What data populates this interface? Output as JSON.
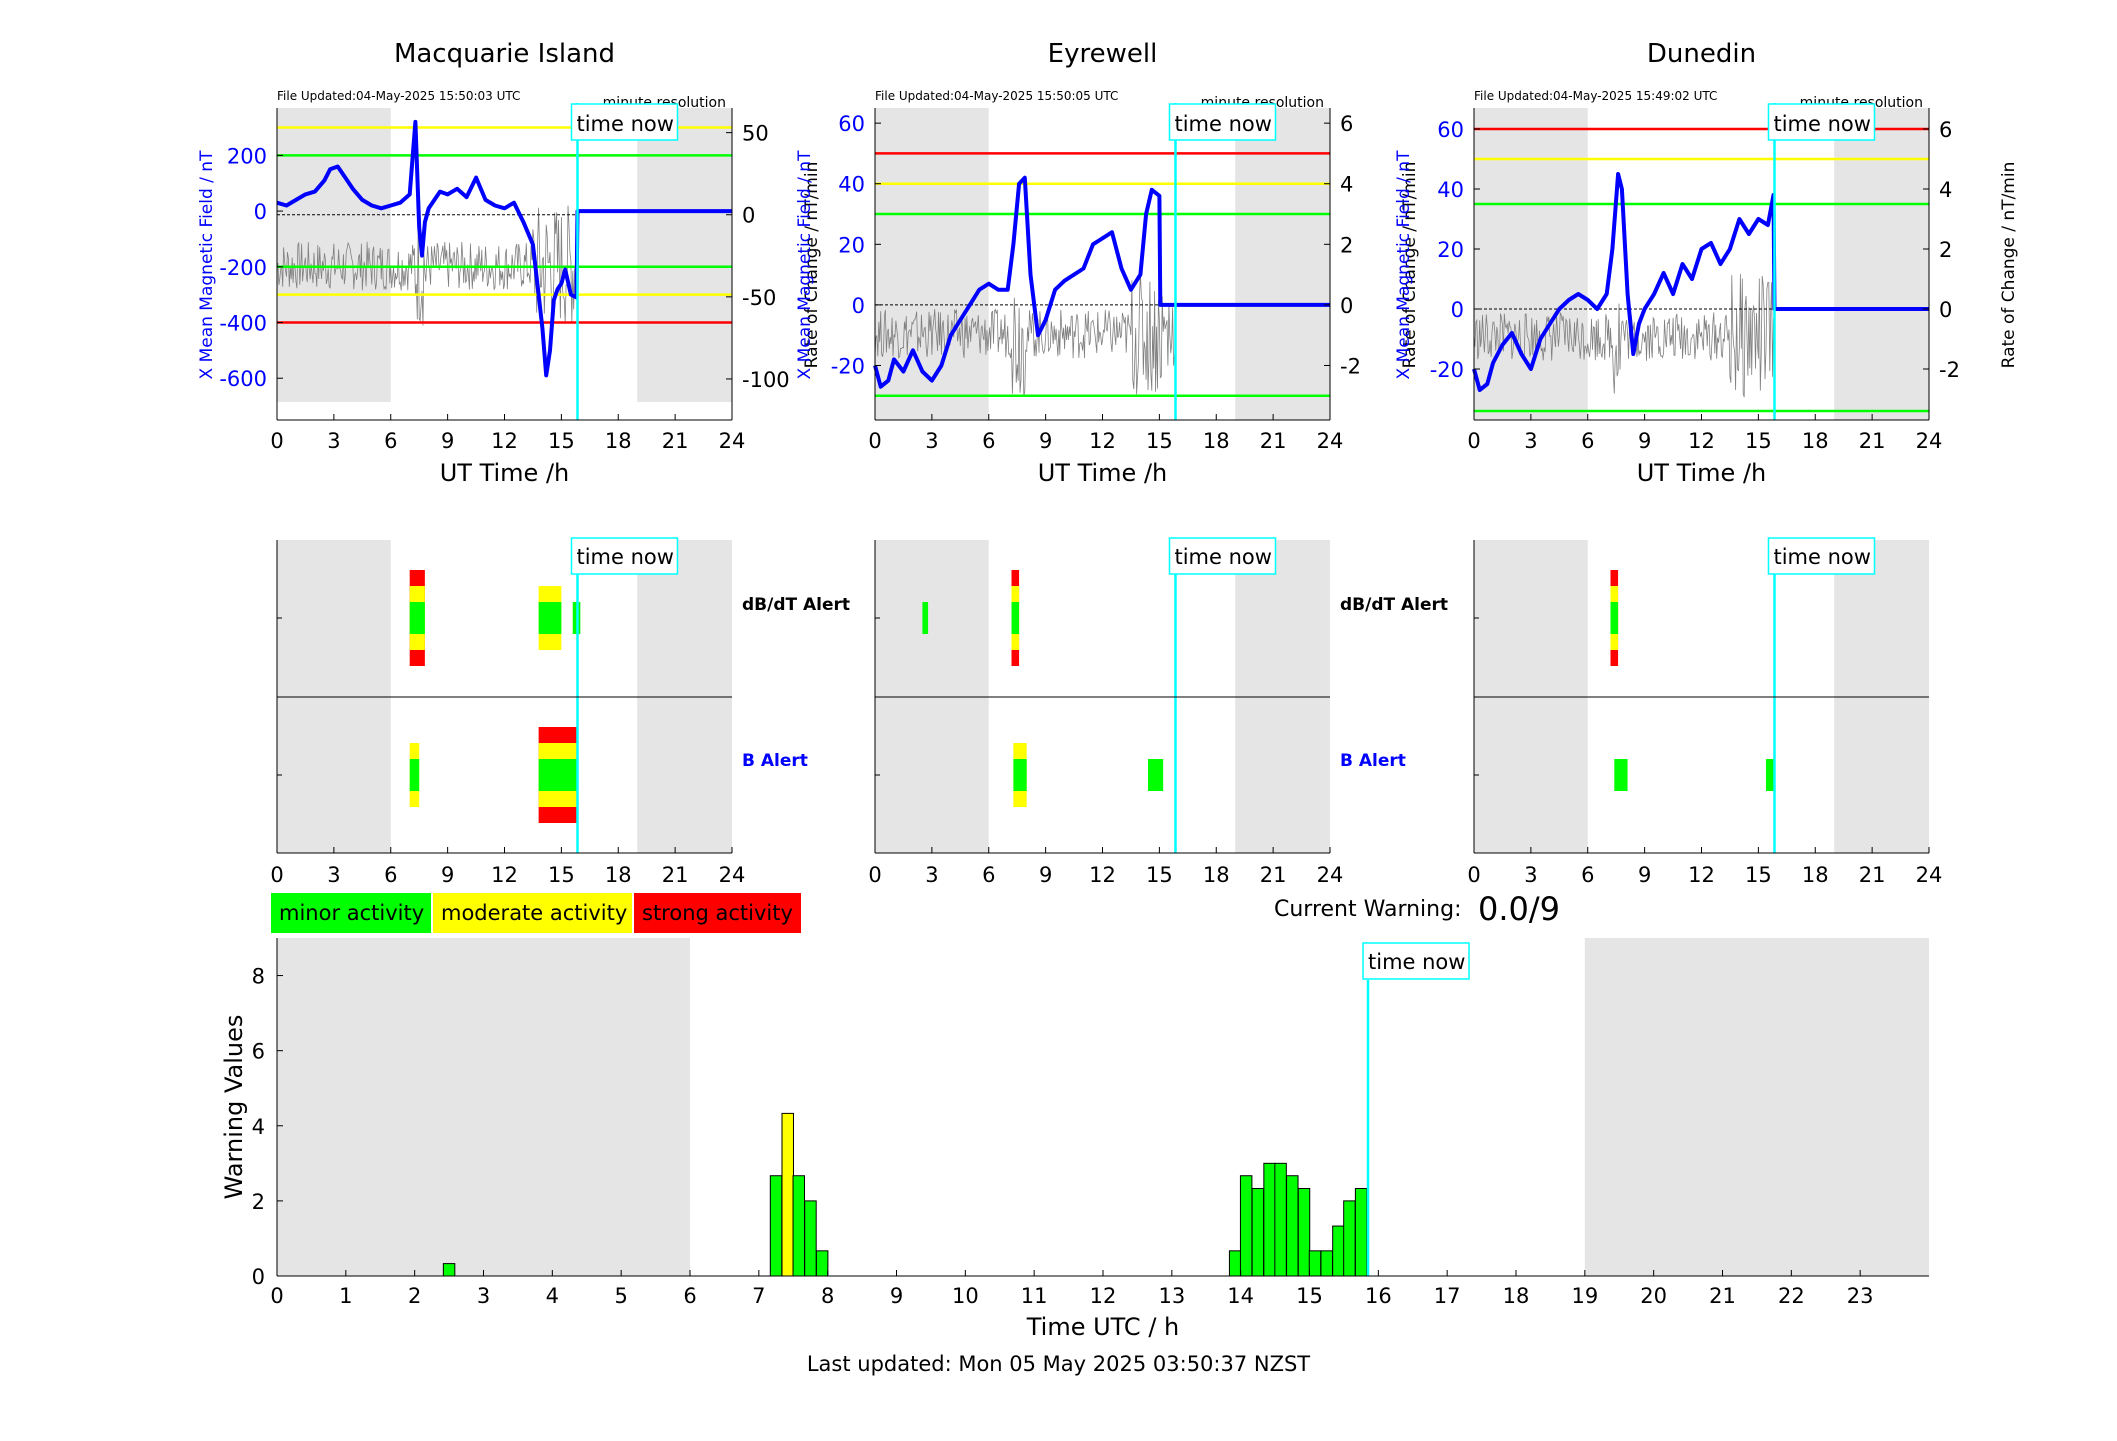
{
  "stations": [
    {
      "name": "Macquarie Island",
      "file_updated": "File Updated:04-May-2025 15:50:03 UTC",
      "resolution": "minute resolution",
      "mag": {
        "ylim": [
          -750,
          370
        ],
        "yticks": [
          200,
          0,
          -200,
          -400,
          -600
        ],
        "roc_ylim": [
          -125,
          65
        ],
        "roc_ticks": [
          50,
          0,
          -50,
          -100
        ],
        "thresholds": [
          {
            "value": 300,
            "color": "#ffff00"
          },
          {
            "value": 200,
            "color": "#00ff00"
          },
          {
            "value": -200,
            "color": "#00ff00"
          },
          {
            "value": -300,
            "color": "#ffff00"
          },
          {
            "value": -400,
            "color": "#ff0000"
          }
        ],
        "x_points": [
          0,
          0.5,
          1,
          1.5,
          2,
          2.5,
          2.8,
          3.2,
          3.6,
          4,
          4.5,
          5,
          5.5,
          6,
          6.5,
          7,
          7.3,
          7.5,
          7.65,
          7.8,
          8,
          8.3,
          8.6,
          9,
          9.5,
          10,
          10.5,
          11,
          11.5,
          12,
          12.5,
          13,
          13.5,
          13.8,
          14,
          14.2,
          14.4,
          14.6,
          14.8,
          15,
          15.2,
          15.5,
          15.8,
          15.85,
          24
        ],
        "values": [
          30,
          20,
          40,
          60,
          70,
          110,
          150,
          160,
          120,
          80,
          40,
          20,
          10,
          20,
          30,
          60,
          320,
          -60,
          -160,
          -40,
          10,
          40,
          70,
          60,
          80,
          50,
          120,
          40,
          20,
          10,
          30,
          -40,
          -120,
          -300,
          -420,
          -590,
          -500,
          -320,
          -280,
          -260,
          -210,
          -300,
          -310,
          0,
          0
        ]
      },
      "alerts": {
        "dbdt": [
          {
            "x": 7.0,
            "w": 0.8,
            "level": 3
          },
          {
            "x": 13.8,
            "w": 1.2,
            "level": 2
          },
          {
            "x": 15.6,
            "w": 0.4,
            "level": 1
          }
        ],
        "b": [
          {
            "x": 7.0,
            "w": 0.5,
            "level": 2
          },
          {
            "x": 13.8,
            "w": 2.0,
            "level": 3
          }
        ]
      }
    },
    {
      "name": "Eyrewell",
      "file_updated": "File Updated:04-May-2025 15:50:05 UTC",
      "resolution": "minute resolution",
      "mag": {
        "ylim": [
          -38,
          65
        ],
        "yticks": [
          60,
          40,
          20,
          0,
          -20
        ],
        "roc_ylim": [
          -3.8,
          6.5
        ],
        "roc_ticks": [
          6,
          4,
          2,
          0,
          -2
        ],
        "thresholds": [
          {
            "value": 50,
            "color": "#ff0000"
          },
          {
            "value": 40,
            "color": "#ffff00"
          },
          {
            "value": 30,
            "color": "#00ff00"
          },
          {
            "value": -30,
            "color": "#00ff00"
          }
        ],
        "x_points": [
          0,
          0.3,
          0.7,
          1,
          1.5,
          2,
          2.5,
          3,
          3.5,
          4,
          4.5,
          5,
          5.5,
          6,
          6.5,
          7,
          7.3,
          7.6,
          7.9,
          8.2,
          8.6,
          9,
          9.5,
          10,
          10.5,
          11,
          11.5,
          12,
          12.5,
          13,
          13.5,
          14,
          14.3,
          14.6,
          15,
          15.05,
          24
        ],
        "values": [
          -20,
          -27,
          -25,
          -18,
          -22,
          -15,
          -22,
          -25,
          -20,
          -10,
          -5,
          0,
          5,
          7,
          5,
          5,
          20,
          40,
          42,
          10,
          -10,
          -5,
          5,
          8,
          10,
          12,
          20,
          22,
          24,
          12,
          5,
          10,
          30,
          38,
          36,
          0,
          0
        ]
      },
      "alerts": {
        "dbdt": [
          {
            "x": 2.5,
            "w": 0.3,
            "level": 1
          },
          {
            "x": 7.2,
            "w": 0.4,
            "level": 3
          }
        ],
        "b": [
          {
            "x": 7.3,
            "w": 0.7,
            "level": 2
          },
          {
            "x": 14.4,
            "w": 0.8,
            "level": 1
          }
        ]
      }
    },
    {
      "name": "Dunedin",
      "file_updated": "File Updated:04-May-2025 15:49:02 UTC",
      "resolution": "minute resolution",
      "mag": {
        "ylim": [
          -37,
          67
        ],
        "yticks": [
          60,
          40,
          20,
          0,
          -20
        ],
        "roc_ylim": [
          -3.7,
          6.7
        ],
        "roc_ticks": [
          6,
          4,
          2,
          0,
          -2
        ],
        "thresholds": [
          {
            "value": 60,
            "color": "#ff0000"
          },
          {
            "value": 50,
            "color": "#ffff00"
          },
          {
            "value": 35,
            "color": "#00ff00"
          },
          {
            "value": -34,
            "color": "#00ff00"
          }
        ],
        "x_points": [
          0,
          0.3,
          0.7,
          1,
          1.5,
          2,
          2.5,
          3,
          3.5,
          4,
          4.5,
          5,
          5.5,
          6,
          6.5,
          7,
          7.3,
          7.6,
          7.8,
          8.1,
          8.4,
          8.7,
          9,
          9.5,
          10,
          10.5,
          11,
          11.5,
          12,
          12.5,
          13,
          13.5,
          14,
          14.5,
          15,
          15.5,
          15.8,
          15.85,
          24
        ],
        "values": [
          -20,
          -27,
          -25,
          -18,
          -12,
          -8,
          -15,
          -20,
          -10,
          -5,
          0,
          3,
          5,
          3,
          0,
          5,
          20,
          45,
          40,
          5,
          -15,
          -5,
          0,
          5,
          12,
          5,
          15,
          10,
          20,
          22,
          15,
          20,
          30,
          25,
          30,
          28,
          38,
          0,
          0
        ]
      },
      "alerts": {
        "dbdt": [
          {
            "x": 7.2,
            "w": 0.4,
            "level": 3
          }
        ],
        "b": [
          {
            "x": 7.4,
            "w": 0.7,
            "level": 1
          },
          {
            "x": 15.4,
            "w": 0.5,
            "level": 1
          }
        ]
      }
    }
  ],
  "labels": {
    "ut_time": "UT Time /h",
    "y_mag": "X Mean Magnetic Field / nT",
    "y_roc": "Rate of Change / nT/min",
    "time_now": "time now",
    "dbdt_alert": "dB/dT Alert",
    "b_alert": "B Alert"
  },
  "time_now": 15.85,
  "night_bands": [
    [
      0,
      6
    ],
    [
      19,
      24
    ]
  ],
  "x_ticks_top": [
    0,
    3,
    6,
    9,
    12,
    15,
    18,
    21,
    24
  ],
  "legend": [
    {
      "label": "minor activity",
      "color": "#00ff00"
    },
    {
      "label": "moderate activity",
      "color": "#ffff00"
    },
    {
      "label": "strong activity",
      "color": "#ff0000"
    }
  ],
  "current_warning": {
    "label": "Current Warning:",
    "value": "0.0/9"
  },
  "chart_data": [
    {
      "type": "bar",
      "title": "",
      "xlabel": "Time UTC / h",
      "ylabel": "Warning Values",
      "xlim": [
        0,
        24
      ],
      "ylim": [
        0,
        9
      ],
      "x_ticks": [
        0,
        1,
        2,
        3,
        4,
        5,
        6,
        7,
        8,
        9,
        10,
        11,
        12,
        13,
        14,
        15,
        16,
        17,
        18,
        19,
        20,
        21,
        22,
        23
      ],
      "y_ticks": [
        0,
        2,
        4,
        6,
        8
      ],
      "bar_width": 0.1667,
      "x": [
        2.5,
        7.25,
        7.42,
        7.58,
        7.75,
        13.92,
        14.08,
        14.25,
        14.42,
        14.58,
        14.75,
        14.92,
        15.08,
        15.25,
        15.42,
        15.58,
        15.75
      ],
      "values": [
        0.33,
        2.67,
        4.33,
        2.67,
        2.0,
        0.67,
        2.67,
        2.33,
        3.0,
        3.0,
        2.67,
        2.33,
        0.67,
        0.67,
        1.33,
        2.0,
        2.33
      ],
      "colors": [
        "#00ff00",
        "#00ff00",
        "#ffff00",
        "#00ff00",
        "#00ff00",
        "#00ff00",
        "#00ff00",
        "#00ff00",
        "#00ff00",
        "#00ff00",
        "#00ff00",
        "#00ff00",
        "#00ff00",
        "#00ff00",
        "#00ff00",
        "#00ff00",
        "#00ff00"
      ],
      "last_bar_value": 0.67,
      "last_bar_x": 7.92,
      "grid": false
    }
  ],
  "footer": "Last updated: Mon 05 May 2025 03:50:37 NZST"
}
